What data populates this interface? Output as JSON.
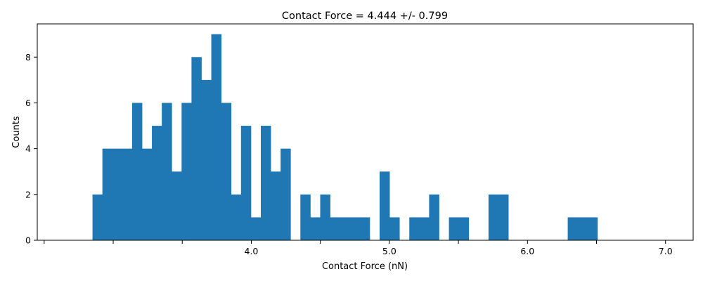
{
  "chart_data": {
    "type": "bar",
    "title": "Contact Force = 4.444 +/- 0.799",
    "xlabel": "Contact Force (nN)",
    "ylabel": "Counts",
    "xlim": [
      2.45,
      7.2
    ],
    "ylim": [
      0,
      9.45
    ],
    "xticks": [
      2.5,
      3.0,
      3.5,
      4.0,
      4.5,
      5.0,
      5.5,
      6.0,
      6.5,
      7.0
    ],
    "xtick_labels": [
      "",
      "",
      "",
      "4.0",
      "",
      "5.0",
      "",
      "6.0",
      "",
      "7.0"
    ],
    "yticks": [
      0,
      2,
      4,
      6,
      8
    ],
    "ytick_labels": [
      "0",
      "2",
      "4",
      "6",
      "8"
    ],
    "grid": false,
    "bar_color": "#1f77b4",
    "bins": {
      "start": 2.85,
      "width": 0.0717,
      "counts": [
        2,
        4,
        4,
        4,
        6,
        4,
        5,
        6,
        3,
        6,
        8,
        7,
        9,
        6,
        2,
        5,
        1,
        5,
        3,
        4,
        0,
        2,
        1,
        2,
        1,
        1,
        1,
        1,
        0,
        3,
        1,
        0,
        1,
        1,
        2,
        0,
        1,
        1,
        0,
        0,
        2,
        2,
        0,
        0,
        0,
        0,
        0,
        0,
        1,
        1,
        1
      ]
    }
  }
}
